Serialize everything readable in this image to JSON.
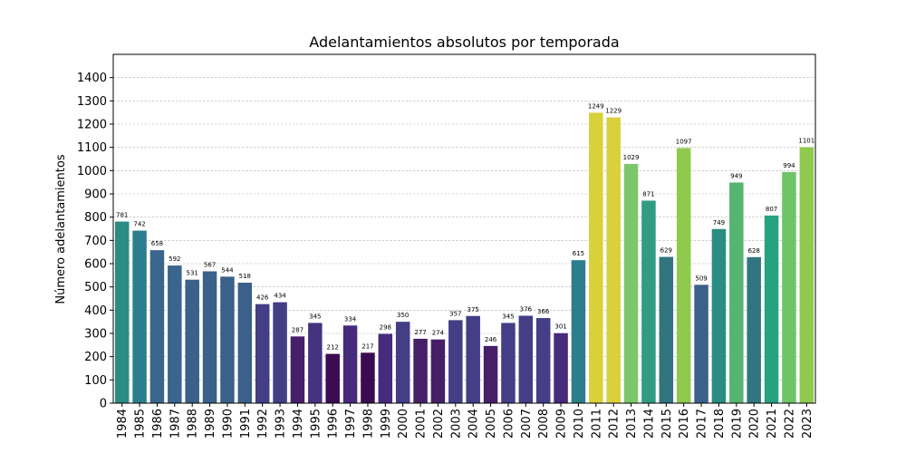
{
  "chart_data": {
    "type": "bar",
    "title": "Adelantamientos absolutos por temporada",
    "xlabel": "",
    "ylabel": "Número adelantamientos",
    "ylim": [
      0,
      1500
    ],
    "yticks": [
      0,
      100,
      200,
      300,
      400,
      500,
      600,
      700,
      800,
      900,
      1000,
      1100,
      1200,
      1300,
      1400
    ],
    "grid": "y-dashed",
    "legend": "none",
    "categories": [
      "1984",
      "1985",
      "1986",
      "1987",
      "1988",
      "1989",
      "1990",
      "1991",
      "1992",
      "1993",
      "1994",
      "1995",
      "1996",
      "1997",
      "1998",
      "1999",
      "2000",
      "2001",
      "2002",
      "2003",
      "2004",
      "2005",
      "2006",
      "2007",
      "2008",
      "2009",
      "2010",
      "2011",
      "2012",
      "2013",
      "2014",
      "2015",
      "2016",
      "2017",
      "2018",
      "2019",
      "2020",
      "2021",
      "2022",
      "2023"
    ],
    "values": [
      781,
      742,
      658,
      592,
      531,
      567,
      544,
      518,
      426,
      434,
      287,
      345,
      212,
      334,
      217,
      298,
      350,
      277,
      274,
      357,
      375,
      246,
      345,
      376,
      366,
      301,
      615,
      1249,
      1229,
      1029,
      871,
      629,
      1097,
      509,
      749,
      949,
      628,
      807,
      994,
      1101
    ],
    "bar_colors": [
      "#2a8c82",
      "#2c7e8c",
      "#3a658d",
      "#3a658d",
      "#3b6089",
      "#3b6089",
      "#3b6089",
      "#3b6089",
      "#433e85",
      "#433e85",
      "#461f68",
      "#46337f",
      "#3b0b52",
      "#462a7c",
      "#3b0b52",
      "#462a7c",
      "#433e85",
      "#461f68",
      "#461f68",
      "#433e85",
      "#433e85",
      "#461f68",
      "#433e85",
      "#433e85",
      "#433e85",
      "#462a7c",
      "#2c7e8c",
      "#d8d13a",
      "#d8d13a",
      "#7cc76a",
      "#2f9c83",
      "#32747f",
      "#8fca4f",
      "#3b6089",
      "#2a8c82",
      "#55b571",
      "#32747f",
      "#26a27f",
      "#6fc466",
      "#8fca4f"
    ],
    "show_data_labels": true
  }
}
